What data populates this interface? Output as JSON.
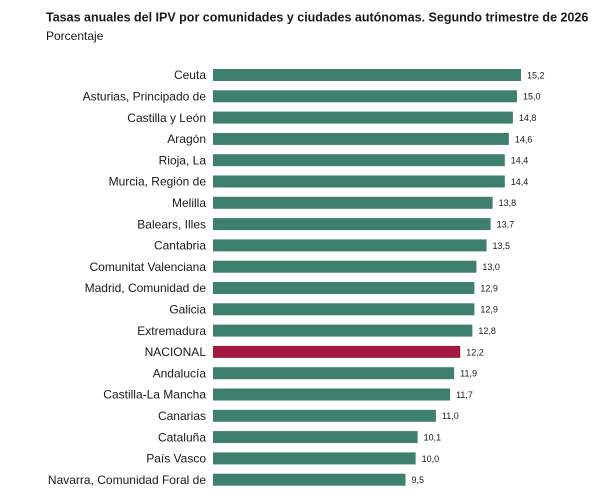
{
  "chart_data": {
    "type": "bar",
    "orientation": "horizontal",
    "title": "Tasas anuales del IPV por comunidades y ciudades autónomas. Segundo trimestre de 2026",
    "subtitle": "Porcentaje",
    "categories": [
      "Ceuta",
      "Asturias, Principado de",
      "Castilla y León",
      "Aragón",
      "Rioja, La",
      "Murcia, Región de",
      "Melilla",
      "Balears, Illes",
      "Cantabria",
      "Comunitat Valenciana",
      "Madrid, Comunidad de",
      "Galicia",
      "Extremadura",
      "NACIONAL",
      "Andalucía",
      "Castilla-La Mancha",
      "Canarias",
      "Cataluña",
      "País Vasco",
      "Navarra, Comunidad Foral de"
    ],
    "values": [
      15.2,
      15.0,
      14.8,
      14.6,
      14.4,
      14.4,
      13.8,
      13.7,
      13.5,
      13.0,
      12.9,
      12.9,
      12.8,
      12.2,
      11.9,
      11.7,
      11.0,
      10.1,
      10.0,
      9.5
    ],
    "value_labels": [
      "15,2",
      "15,0",
      "14,8",
      "14,6",
      "14,4",
      "14,4",
      "13,8",
      "13,7",
      "13,5",
      "13,0",
      "12,9",
      "12,9",
      "12,8",
      "12,2",
      "11,9",
      "11,7",
      "11,0",
      "10,1",
      "10,0",
      "9,5"
    ],
    "colors": [
      "#3e7f6f",
      "#3e7f6f",
      "#3e7f6f",
      "#3e7f6f",
      "#3e7f6f",
      "#3e7f6f",
      "#3e7f6f",
      "#3e7f6f",
      "#3e7f6f",
      "#3e7f6f",
      "#3e7f6f",
      "#3e7f6f",
      "#3e7f6f",
      "#a3193d",
      "#3e7f6f",
      "#3e7f6f",
      "#3e7f6f",
      "#3e7f6f",
      "#3e7f6f",
      "#3e7f6f"
    ]
  }
}
